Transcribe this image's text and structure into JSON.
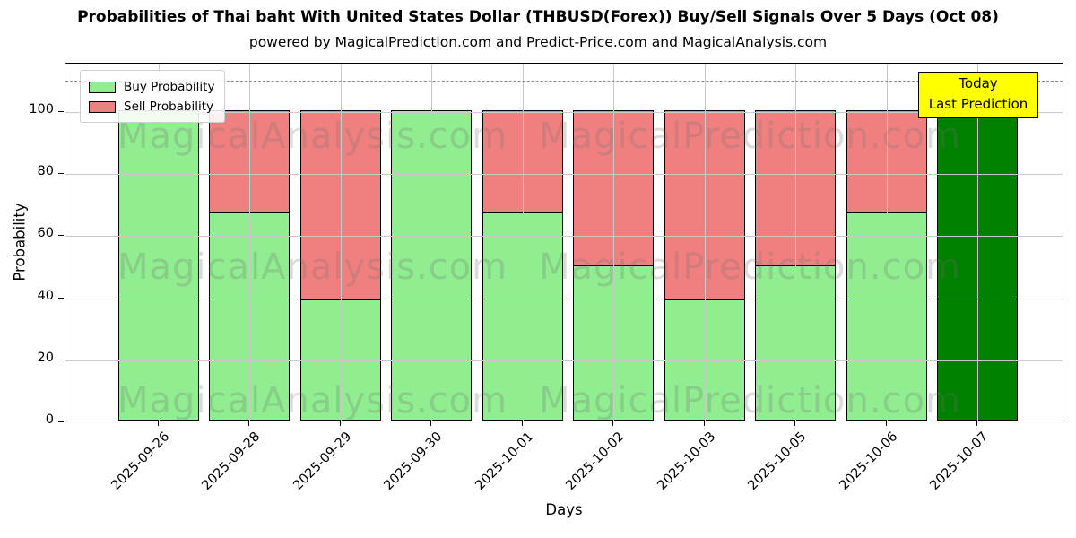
{
  "title": "Probabilities of Thai baht With United States Dollar (THBUSD(Forex)) Buy/Sell Signals Over 5 Days (Oct 08)",
  "subtitle": "powered by MagicalPrediction.com and Predict-Price.com and MagicalAnalysis.com",
  "legend": {
    "items": [
      {
        "label": "Buy Probability",
        "color": "#90EE90"
      },
      {
        "label": "Sell Probability",
        "color": "#F08080"
      }
    ]
  },
  "annotation": {
    "line1": "Today",
    "line2": "Last Prediction",
    "bg_color": "#FFFF00",
    "border_color": "#000000"
  },
  "watermarks": {
    "left_text": "MagicalAnalysis.com",
    "right_text": "MagicalPrediction.com"
  },
  "chart_data": {
    "type": "bar",
    "stacked": true,
    "title": "Probabilities of Thai baht With United States Dollar (THBUSD(Forex)) Buy/Sell Signals Over 5 Days (Oct 08)",
    "xlabel": "Days",
    "ylabel": "Probability",
    "categories": [
      "2025-09-26",
      "2025-09-28",
      "2025-09-29",
      "2025-09-30",
      "2025-10-01",
      "2025-10-02",
      "2025-10-03",
      "2025-10-05",
      "2025-10-06",
      "2025-10-07"
    ],
    "series": [
      {
        "name": "Buy Probability",
        "color": "#90EE90",
        "values": [
          100,
          67,
          39,
          100,
          67,
          50,
          39,
          50,
          67,
          100
        ]
      },
      {
        "name": "Sell Probability",
        "color": "#F08080",
        "values": [
          0,
          33,
          61,
          0,
          33,
          50,
          61,
          50,
          33,
          0
        ]
      }
    ],
    "last_bar": {
      "category": "2025-10-07",
      "color": "#008000",
      "note": "Today / Last Prediction"
    },
    "yticks": [
      0,
      20,
      40,
      60,
      80,
      100
    ],
    "ylim": [
      0,
      115.6
    ],
    "dashed_line_y": 110,
    "grid": true,
    "legend_position": "upper left"
  }
}
